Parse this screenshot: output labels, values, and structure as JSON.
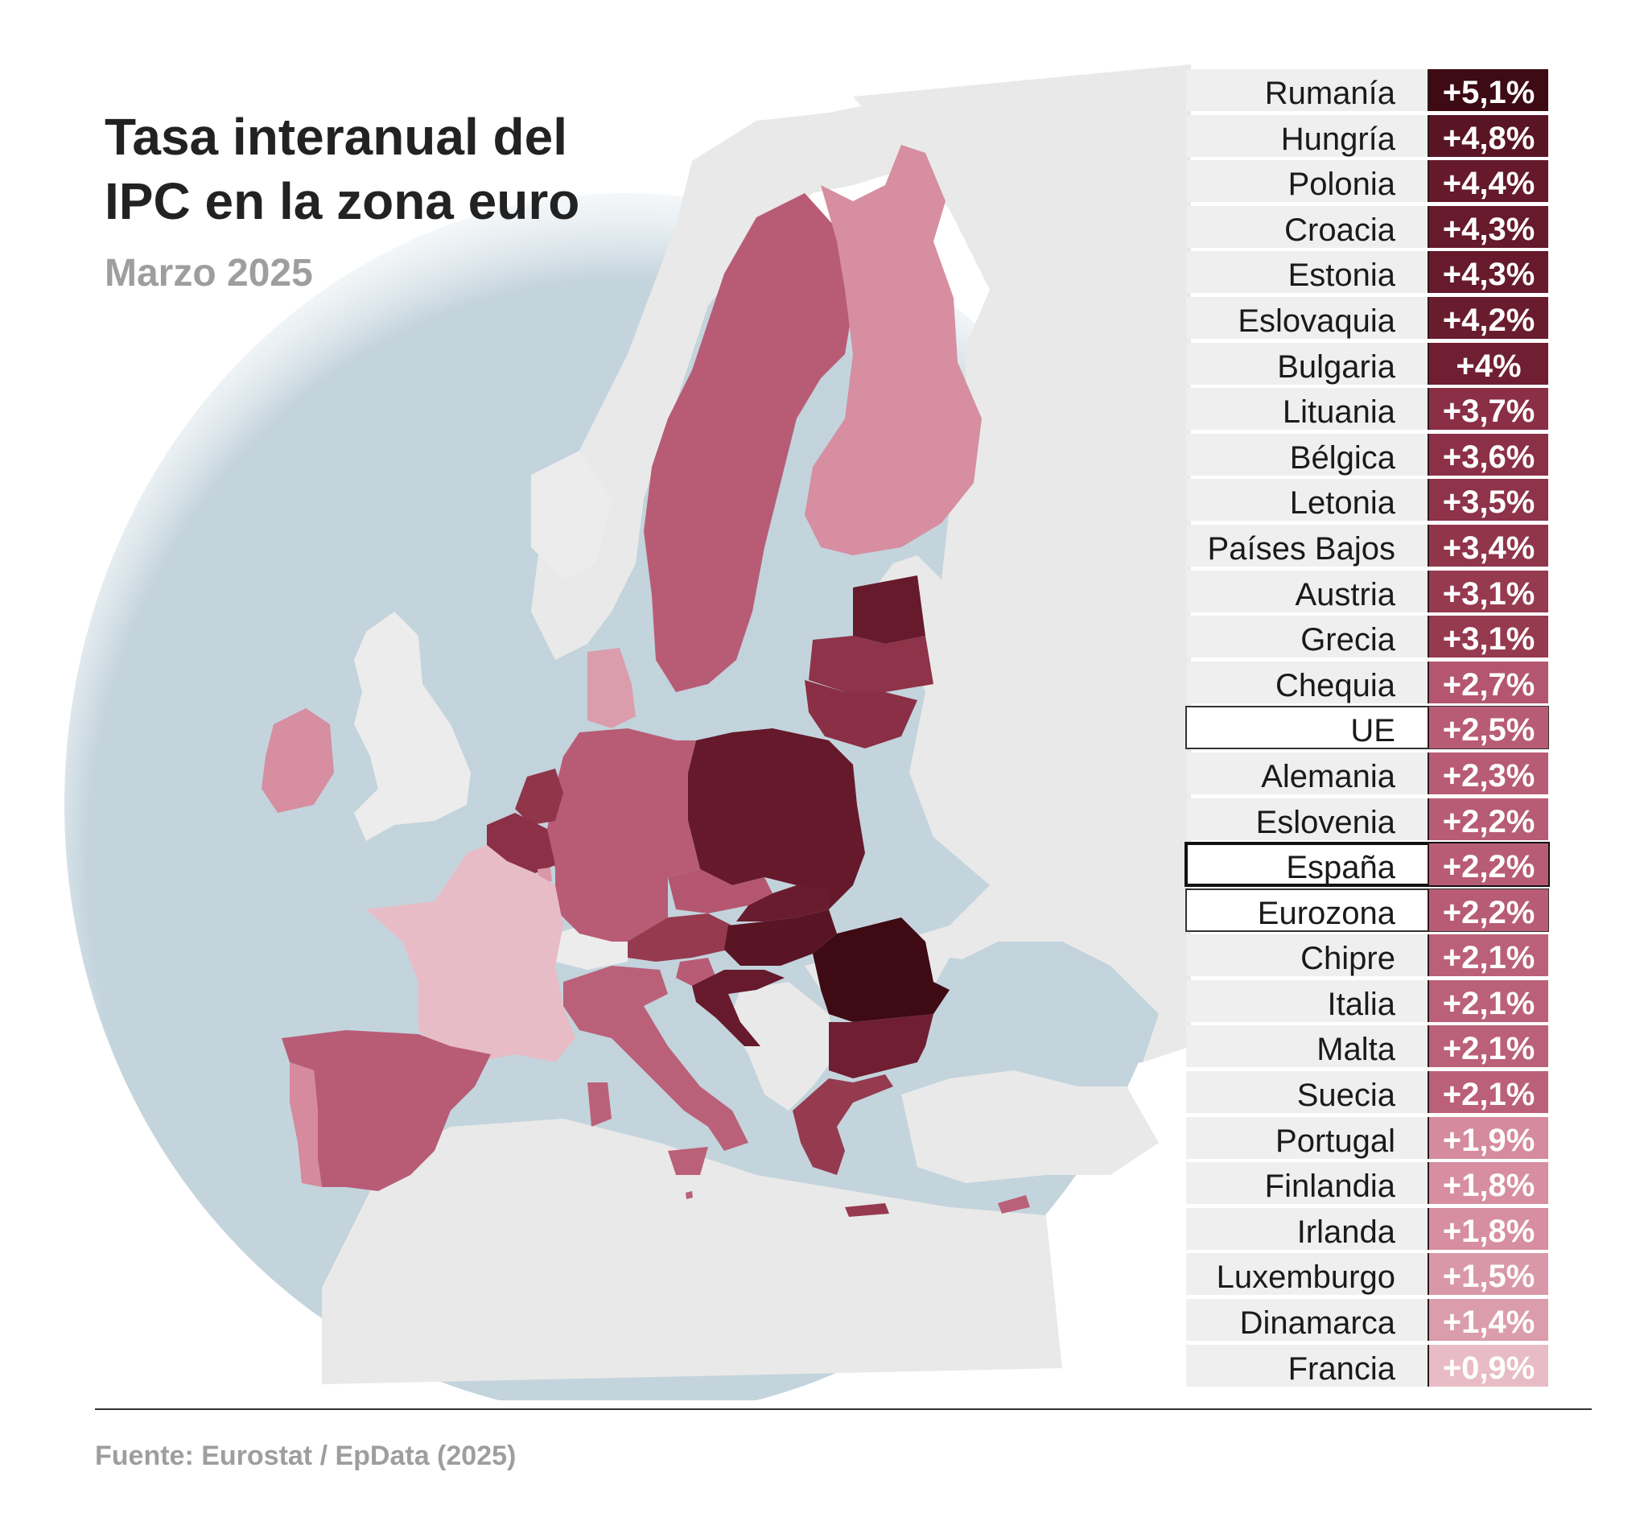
{
  "header": {
    "title_line1": "Tasa interanual del",
    "title_line2": "IPC en la zona euro",
    "subtitle": "Marzo 2025"
  },
  "colors": {
    "sea": "#c2d3dc",
    "land_other": "#e9e9e9",
    "land_light": "#f0f0f0",
    "scale_light": "#e8bcc6",
    "scale_mid_light": "#d58a9d",
    "scale_mid": "#b85c76",
    "scale_dark": "#8e3349",
    "scale_darker": "#6a1f31",
    "scale_darkest": "#3e0a14"
  },
  "ranking": [
    {
      "name": "Rumanía",
      "value": "+5,1%",
      "color": "#3e0a14"
    },
    {
      "name": "Hungría",
      "value": "+4,8%",
      "color": "#5a1525"
    },
    {
      "name": "Polonia",
      "value": "+4,4%",
      "color": "#65192b"
    },
    {
      "name": "Croacia",
      "value": "+4,3%",
      "color": "#661a2c"
    },
    {
      "name": "Estonia",
      "value": "+4,3%",
      "color": "#661a2c"
    },
    {
      "name": "Eslovaquia",
      "value": "+4,2%",
      "color": "#6a1c2f"
    },
    {
      "name": "Bulgaria",
      "value": "+4%",
      "color": "#701f33"
    },
    {
      "name": "Lituania",
      "value": "+3,7%",
      "color": "#8a2f45"
    },
    {
      "name": "Bélgica",
      "value": "+3,6%",
      "color": "#8c3047"
    },
    {
      "name": "Letonia",
      "value": "+3,5%",
      "color": "#8e3349"
    },
    {
      "name": "Países Bajos",
      "value": "+3,4%",
      "color": "#91354b"
    },
    {
      "name": "Austria",
      "value": "+3,1%",
      "color": "#963a50"
    },
    {
      "name": "Grecia",
      "value": "+3,1%",
      "color": "#963a50"
    },
    {
      "name": "Chequia",
      "value": "+2,7%",
      "color": "#b4566f"
    },
    {
      "name": "UE",
      "value": "+2,5%",
      "color": "#b85c76",
      "style": "outlined"
    },
    {
      "name": "Alemania",
      "value": "+2,3%",
      "color": "#b85c76"
    },
    {
      "name": "Eslovenia",
      "value": "+2,2%",
      "color": "#b85c76"
    },
    {
      "name": "España",
      "value": "+2,2%",
      "color": "#b85c76",
      "style": "strong"
    },
    {
      "name": "Eurozona",
      "value": "+2,2%",
      "color": "#b85c76",
      "style": "outlined"
    },
    {
      "name": "Chipre",
      "value": "+2,1%",
      "color": "#bb6079"
    },
    {
      "name": "Italia",
      "value": "+2,1%",
      "color": "#bb6079"
    },
    {
      "name": "Malta",
      "value": "+2,1%",
      "color": "#bb6079"
    },
    {
      "name": "Suecia",
      "value": "+2,1%",
      "color": "#bb6079"
    },
    {
      "name": "Portugal",
      "value": "+1,9%",
      "color": "#d58a9d"
    },
    {
      "name": "Finlandia",
      "value": "+1,8%",
      "color": "#d68ea0"
    },
    {
      "name": "Irlanda",
      "value": "+1,8%",
      "color": "#d68ea0"
    },
    {
      "name": "Luxemburgo",
      "value": "+1,5%",
      "color": "#d998a8"
    },
    {
      "name": "Dinamarca",
      "value": "+1,4%",
      "color": "#db9dac"
    },
    {
      "name": "Francia",
      "value": "+0,9%",
      "color": "#e8bcc6"
    }
  ],
  "footer": {
    "source": "Fuente: Eurostat / EpData (2025)"
  }
}
